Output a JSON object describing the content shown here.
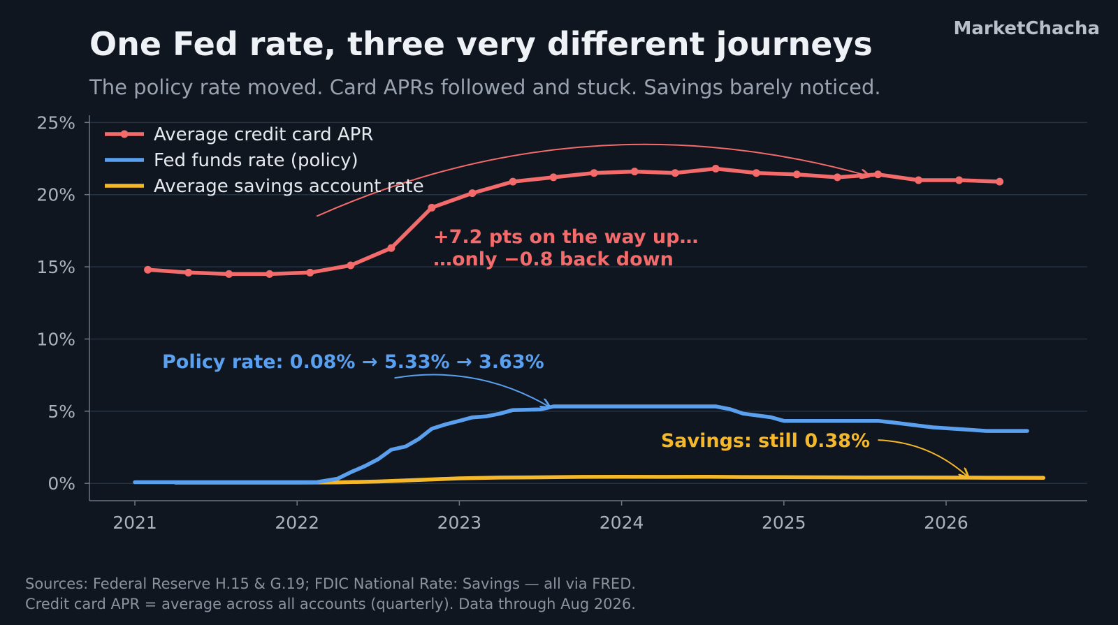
{
  "header": {
    "title": "One Fed rate, three very different journeys",
    "subtitle": "The policy rate moved. Card APRs followed and stuck. Savings barely noticed.",
    "brand": "MarketChacha"
  },
  "footer": {
    "sources_line1": "Sources: Federal Reserve H.15 & G.19; FDIC National Rate: Savings — all via FRED.",
    "sources_line2": "Credit card APR = average across all accounts (quarterly). Data through Aug 2026."
  },
  "chart_data": {
    "type": "line",
    "ylim": [
      -1.2,
      25.5
    ],
    "xlim": [
      2020.72,
      2026.87
    ],
    "yticks": [
      0,
      5,
      10,
      15,
      20,
      25
    ],
    "ytick_labels": [
      "0%",
      "5%",
      "10%",
      "15%",
      "20%",
      "25%"
    ],
    "xticks": [
      2021,
      2022,
      2023,
      2024,
      2025,
      2026
    ],
    "xtick_labels": [
      "2021",
      "2022",
      "2023",
      "2024",
      "2025",
      "2026"
    ],
    "grid": "horizontal",
    "legend_position": "top-left",
    "series": [
      {
        "name": "Average credit card APR",
        "color": "#f36b6b",
        "markers": true,
        "x": [
          2021.08,
          2021.33,
          2021.58,
          2021.83,
          2022.08,
          2022.33,
          2022.58,
          2022.83,
          2023.08,
          2023.33,
          2023.58,
          2023.83,
          2024.08,
          2024.33,
          2024.58,
          2024.83,
          2025.08,
          2025.33,
          2025.58,
          2025.83,
          2026.08,
          2026.33
        ],
        "y": [
          14.8,
          14.6,
          14.5,
          14.5,
          14.6,
          15.1,
          16.3,
          19.1,
          20.1,
          20.9,
          21.2,
          21.5,
          21.6,
          21.5,
          21.8,
          21.5,
          21.4,
          21.2,
          21.4,
          21.0,
          21.0,
          20.9
        ]
      },
      {
        "name": "Fed funds rate (policy)",
        "color": "#5aa0ef",
        "markers": false,
        "x": [
          2021.0,
          2021.25,
          2021.5,
          2021.75,
          2022.0,
          2022.12,
          2022.25,
          2022.33,
          2022.42,
          2022.5,
          2022.58,
          2022.67,
          2022.75,
          2022.83,
          2022.92,
          2023.0,
          2023.08,
          2023.17,
          2023.25,
          2023.33,
          2023.5,
          2023.58,
          2023.75,
          2024.0,
          2024.25,
          2024.5,
          2024.58,
          2024.67,
          2024.75,
          2024.92,
          2025.0,
          2025.25,
          2025.5,
          2025.58,
          2025.67,
          2025.83,
          2025.92,
          2026.25,
          2026.5
        ],
        "y": [
          0.08,
          0.08,
          0.08,
          0.08,
          0.08,
          0.08,
          0.33,
          0.77,
          1.21,
          1.68,
          2.33,
          2.56,
          3.08,
          3.78,
          4.1,
          4.33,
          4.57,
          4.65,
          4.83,
          5.08,
          5.12,
          5.33,
          5.33,
          5.33,
          5.33,
          5.33,
          5.33,
          5.13,
          4.83,
          4.58,
          4.33,
          4.33,
          4.33,
          4.33,
          4.22,
          4.0,
          3.88,
          3.63,
          3.63
        ]
      },
      {
        "name": "Average savings account rate",
        "color": "#f5b82a",
        "markers": false,
        "x": [
          2021.25,
          2021.5,
          2021.75,
          2022.0,
          2022.25,
          2022.5,
          2022.75,
          2023.0,
          2023.25,
          2023.5,
          2023.75,
          2024.0,
          2024.25,
          2024.5,
          2024.75,
          2025.0,
          2025.25,
          2025.5,
          2025.75,
          2026.0,
          2026.25,
          2026.6
        ],
        "y": [
          0.06,
          0.06,
          0.06,
          0.06,
          0.07,
          0.13,
          0.24,
          0.35,
          0.4,
          0.42,
          0.45,
          0.46,
          0.45,
          0.46,
          0.44,
          0.43,
          0.42,
          0.41,
          0.41,
          0.4,
          0.39,
          0.38
        ]
      }
    ],
    "annotations": [
      {
        "lines": [
          "+7.2 pts on the way up…",
          "…only −0.8 back down"
        ],
        "color": "#f36b6b",
        "arrow_from": [
          2022.12,
          18.5
        ],
        "arrow_to": [
          2025.52,
          21.3
        ]
      },
      {
        "lines": [
          "Policy rate: 0.08% → 5.33% → 3.63%"
        ],
        "color": "#5aa0ef",
        "arrow_from": [
          2022.6,
          7.3
        ],
        "arrow_to": [
          2023.55,
          5.33
        ]
      },
      {
        "lines": [
          "Savings: still 0.38%"
        ],
        "color": "#f5b82a",
        "arrow_from": [
          2025.58,
          3.0
        ],
        "arrow_to": [
          2026.13,
          0.5
        ]
      }
    ]
  }
}
